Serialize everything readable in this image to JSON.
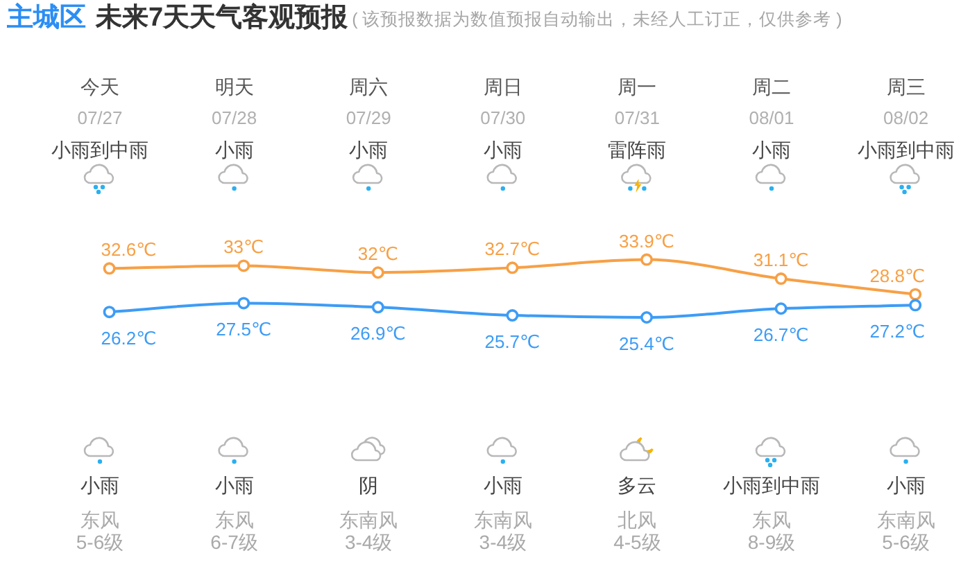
{
  "chart_data": {
    "type": "line",
    "title": "主城区",
    "subtitle": "未来7天天气客观预报",
    "categories": [
      "今天\n07/27\n小雨到中雨",
      "明天\n07/28\n小雨",
      "周六\n07/29\n小雨",
      "周日\n07/30\n小雨",
      "周一\n07/31\n雷阵雨",
      "周二\n08/01\n小雨",
      "周三\n08/02\n小雨到中雨"
    ],
    "series": [
      {
        "color": "#f7a046",
        "values": [
          32.6,
          33,
          32,
          32.7,
          33.9,
          31.1,
          28.8
        ],
        "value_labels": [
          "32.6℃",
          "33℃",
          "32℃",
          "32.7℃",
          "33.9℃",
          "31.1℃",
          "28.8℃"
        ]
      },
      {
        "color": "#3d9cf6",
        "values": [
          26.2,
          27.5,
          26.9,
          25.7,
          25.4,
          26.7,
          27.2
        ],
        "value_labels": [
          "26.2℃",
          "27.5℃",
          "26.9℃",
          "25.7℃",
          "25.4℃",
          "26.7℃",
          "27.2℃"
        ]
      }
    ],
    "marker": "circle",
    "annotations": [
      "( 该预报数据为数值预报自动输出，未经人工订正，仅供参考 )",
      "小雨",
      "东风",
      "5-6级",
      "小雨",
      "东风",
      "6-7级",
      "阴",
      "东南风",
      "3-4级",
      "小雨",
      "东南风",
      "3-4级",
      "多云",
      "北风",
      "4-5级",
      "小雨到中雨",
      "东风",
      "8-9级",
      "小雨",
      "东南风",
      "5-6级"
    ]
  }
}
